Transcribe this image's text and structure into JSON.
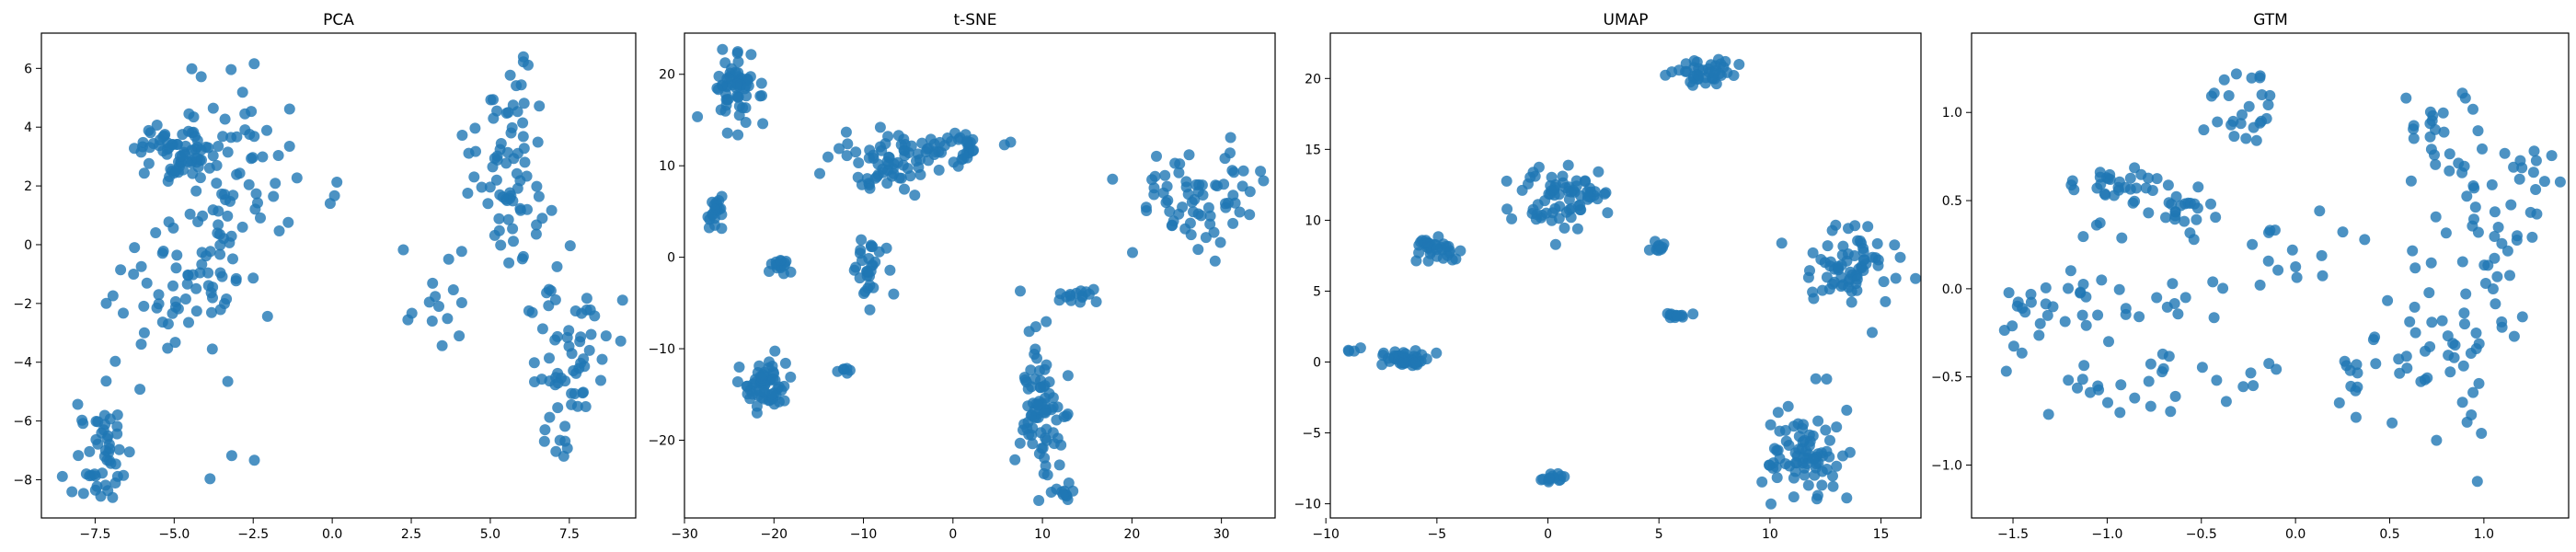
{
  "marker_color": "#1f77b4",
  "chart_data": [
    {
      "type": "scatter",
      "title": "PCA",
      "xlim": [
        -9.2,
        9.6
      ],
      "ylim": [
        -9.3,
        7.2
      ],
      "xticks": [
        -7.5,
        -5.0,
        -2.5,
        0.0,
        2.5,
        5.0,
        7.5
      ],
      "yticks": [
        -8,
        -6,
        -4,
        -2,
        0,
        2,
        4,
        6
      ],
      "clusters": [
        {
          "cx": -4.9,
          "cy": 3.2,
          "sx": 0.6,
          "sy": 0.55,
          "n": 70
        },
        {
          "cx": -3.2,
          "cy": 2.2,
          "sx": 0.8,
          "sy": 1.9,
          "n": 60
        },
        {
          "cx": -7.3,
          "cy": -7.1,
          "sx": 0.45,
          "sy": 0.9,
          "n": 50
        },
        {
          "cx": -4.6,
          "cy": -1.4,
          "sx": 1.3,
          "sy": 1.1,
          "n": 60
        },
        {
          "cx": -3.5,
          "cy": -6.6,
          "sx": 0.5,
          "sy": 1.2,
          "n": 4
        },
        {
          "cx": 3.2,
          "cy": -2.3,
          "sx": 0.5,
          "sy": 1.1,
          "n": 15
        },
        {
          "cx": 5.7,
          "cy": 3.0,
          "sx": 0.6,
          "sy": 2.0,
          "n": 75
        },
        {
          "cx": 7.4,
          "cy": -3.9,
          "sx": 0.7,
          "sy": 1.5,
          "n": 65
        },
        {
          "cx": 0.0,
          "cy": 1.7,
          "sx": 0.1,
          "sy": 0.2,
          "n": 3
        }
      ]
    },
    {
      "type": "scatter",
      "title": "t-SNE",
      "xlim": [
        -30,
        36
      ],
      "ylim": [
        -28.5,
        24.5
      ],
      "xticks": [
        -30,
        -20,
        -10,
        0,
        10,
        20,
        30
      ],
      "yticks": [
        -20,
        -10,
        0,
        10,
        20
      ],
      "clusters": [
        {
          "cx": -24.5,
          "cy": 18.2,
          "sx": 1.3,
          "sy": 2.0,
          "n": 60
        },
        {
          "cx": -26.5,
          "cy": 5.0,
          "sx": 0.5,
          "sy": 0.8,
          "n": 20
        },
        {
          "cx": -7.0,
          "cy": 10.5,
          "sx": 3.0,
          "sy": 1.7,
          "n": 65
        },
        {
          "cx": 0.0,
          "cy": 12.0,
          "sx": 2.0,
          "sy": 1.0,
          "n": 35
        },
        {
          "cx": -19.5,
          "cy": -0.8,
          "sx": 0.6,
          "sy": 0.5,
          "n": 15
        },
        {
          "cx": -9.0,
          "cy": -1.5,
          "sx": 1.0,
          "sy": 1.8,
          "n": 30
        },
        {
          "cx": -20.5,
          "cy": -13.8,
          "sx": 1.3,
          "sy": 1.6,
          "n": 60
        },
        {
          "cx": -12.5,
          "cy": -12.3,
          "sx": 0.5,
          "sy": 0.2,
          "n": 6
        },
        {
          "cx": 9.8,
          "cy": -17.0,
          "sx": 1.4,
          "sy": 4.0,
          "n": 80
        },
        {
          "cx": 14.5,
          "cy": -4.4,
          "sx": 1.2,
          "sy": 0.5,
          "n": 15
        },
        {
          "cx": 27.0,
          "cy": 6.5,
          "sx": 3.5,
          "sy": 2.8,
          "n": 70
        },
        {
          "cx": 12.5,
          "cy": -25.5,
          "sx": 0.5,
          "sy": 0.5,
          "n": 10
        }
      ]
    },
    {
      "type": "scatter",
      "title": "UMAP",
      "xlim": [
        -9.8,
        16.8
      ],
      "ylim": [
        -11.0,
        23.2
      ],
      "xticks": [
        -10,
        -5,
        0,
        5,
        10,
        15
      ],
      "yticks": [
        -10,
        -5,
        0,
        5,
        10,
        15,
        20
      ],
      "clusters": [
        {
          "cx": 7.0,
          "cy": 20.6,
          "sx": 0.6,
          "sy": 0.5,
          "n": 40
        },
        {
          "cx": 0.2,
          "cy": 11.5,
          "sx": 1.0,
          "sy": 1.2,
          "n": 60
        },
        {
          "cx": 2.2,
          "cy": 11.8,
          "sx": 0.4,
          "sy": 0.2,
          "n": 12
        },
        {
          "cx": -5.0,
          "cy": 8.0,
          "sx": 0.6,
          "sy": 0.4,
          "n": 35
        },
        {
          "cx": 5.0,
          "cy": 8.2,
          "sx": 0.2,
          "sy": 0.2,
          "n": 10
        },
        {
          "cx": 5.7,
          "cy": 3.3,
          "sx": 0.4,
          "sy": 0.1,
          "n": 12
        },
        {
          "cx": 13.5,
          "cy": 6.8,
          "sx": 1.2,
          "sy": 1.4,
          "n": 70
        },
        {
          "cx": -6.3,
          "cy": 0.2,
          "sx": 0.5,
          "sy": 0.3,
          "n": 45
        },
        {
          "cx": -8.5,
          "cy": 0.8,
          "sx": 0.3,
          "sy": 0.1,
          "n": 4
        },
        {
          "cx": 0.0,
          "cy": -8.2,
          "sx": 0.3,
          "sy": 0.15,
          "n": 14
        },
        {
          "cx": 11.5,
          "cy": -6.5,
          "sx": 0.9,
          "sy": 1.8,
          "n": 80
        }
      ]
    },
    {
      "type": "scatter",
      "title": "GTM",
      "xlim": [
        -1.72,
        1.45
      ],
      "ylim": [
        -1.3,
        1.45
      ],
      "xticks": [
        -1.5,
        -1.0,
        -0.5,
        0.0,
        0.5,
        1.0
      ],
      "yticks": [
        -1.0,
        -0.5,
        0.0,
        0.5,
        1.0
      ],
      "clusters": [
        {
          "cx": -0.9,
          "cy": 0.6,
          "sx": 0.15,
          "sy": 0.05,
          "n": 30
        },
        {
          "cx": -0.55,
          "cy": 0.45,
          "sx": 0.1,
          "sy": 0.05,
          "n": 20
        },
        {
          "cx": -0.3,
          "cy": 1.05,
          "sx": 0.1,
          "sy": 0.12,
          "n": 25
        },
        {
          "cx": -1.3,
          "cy": -0.1,
          "sx": 0.2,
          "sy": 0.1,
          "n": 25
        },
        {
          "cx": -0.95,
          "cy": -0.55,
          "sx": 0.2,
          "sy": 0.1,
          "n": 20
        },
        {
          "cx": -0.7,
          "cy": 0.05,
          "sx": 0.25,
          "sy": 0.2,
          "n": 25
        },
        {
          "cx": 0.0,
          "cy": 0.25,
          "sx": 0.15,
          "sy": 0.2,
          "n": 15
        },
        {
          "cx": 0.8,
          "cy": 0.85,
          "sx": 0.15,
          "sy": 0.15,
          "n": 25
        },
        {
          "cx": 1.1,
          "cy": 0.4,
          "sx": 0.15,
          "sy": 0.3,
          "n": 45
        },
        {
          "cx": 0.8,
          "cy": -0.3,
          "sx": 0.2,
          "sy": 0.3,
          "n": 50
        },
        {
          "cx": 0.3,
          "cy": -0.5,
          "sx": 0.03,
          "sy": 0.1,
          "n": 10
        },
        {
          "cx": -0.3,
          "cy": -0.5,
          "sx": 0.1,
          "sy": 0.1,
          "n": 8
        }
      ]
    }
  ]
}
